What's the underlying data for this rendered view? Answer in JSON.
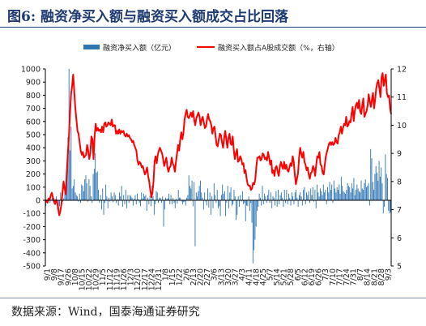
{
  "figure": {
    "title": "图6:  融资净买入额与融资买入额成交占比回落",
    "source": "数据来源：Wind，国泰海通证券研究"
  },
  "chart_data": {
    "type": "bar+line",
    "colors": {
      "bars": "#2e75b6",
      "line": "#ff0000",
      "axis": "#000000"
    },
    "legend": {
      "placement": "top",
      "items": [
        "融资净买入额（亿元）",
        "融资买入额占A股成交额（%，右轴）"
      ]
    },
    "y_left": {
      "min": -500,
      "max": 1000,
      "ticks": [
        -500,
        -400,
        -300,
        -200,
        -100,
        0,
        100,
        200,
        300,
        400,
        500,
        600,
        700,
        800,
        900,
        1000
      ]
    },
    "y_right": {
      "min": 5,
      "max": 12,
      "ticks": [
        5,
        6,
        7,
        8,
        9,
        10,
        11,
        12
      ]
    },
    "x_tick_labels": [
      "9/1",
      "9/8",
      "9/17",
      "9/26",
      "10/8",
      "10/15",
      "10/22",
      "10/29",
      "11/5",
      "11/12",
      "11/19",
      "11/26",
      "12/3",
      "12/10",
      "12/17",
      "12/24",
      "12/31",
      "1/8",
      "1/15",
      "1/22",
      "2/6",
      "2/13",
      "2/20",
      "2/27",
      "3/6",
      "3/13",
      "3/20",
      "3/27",
      "4/3",
      "4/11",
      "4/18",
      "4/25",
      "5/7",
      "5/14",
      "5/21",
      "5/28",
      "6/5",
      "6/12",
      "6/19",
      "6/26",
      "7/3",
      "7/10",
      "7/17",
      "7/24",
      "7/31",
      "8/7",
      "8/14",
      "8/21",
      "8/28",
      "9/3"
    ],
    "series": [
      {
        "name": "融资净买入额（亿元）",
        "kind": "bar",
        "axis": "left",
        "values": [
          -45,
          5,
          -15,
          10,
          -20,
          5,
          20,
          -10,
          5,
          -30,
          30,
          -70,
          -95,
          -45,
          60,
          20,
          -10,
          15,
          90,
          120,
          280,
          480,
          1000,
          380,
          560,
          90,
          110,
          160,
          60,
          40,
          30,
          -10,
          50,
          -20,
          120,
          110,
          70,
          160,
          190,
          130,
          -10,
          160,
          110,
          30,
          -20,
          200,
          240,
          360,
          210,
          220,
          80,
          -20,
          40,
          -70,
          90,
          -110,
          -20,
          120,
          30,
          -60,
          20,
          -10,
          60,
          30,
          -15,
          60,
          40,
          -20,
          10,
          -40,
          60,
          30,
          110,
          -50,
          40,
          -30,
          80,
          -60,
          40,
          -20,
          40,
          30,
          20,
          -40,
          10,
          40,
          -30,
          50,
          10,
          -20,
          -45,
          60,
          15,
          50,
          30,
          40,
          -80,
          20,
          -30,
          35,
          -45,
          110,
          30,
          -110,
          -30,
          70,
          60,
          -20,
          20,
          20,
          -20,
          30,
          -200,
          -70,
          20,
          10,
          15,
          50,
          -30,
          40,
          -30,
          20,
          -20,
          -60,
          10,
          -25,
          80,
          20,
          20,
          -10,
          -30,
          -15,
          -10,
          -40,
          20,
          40,
          190,
          110,
          90,
          150,
          -45,
          140,
          -350,
          60,
          30,
          70,
          110,
          150,
          60,
          20,
          -70,
          60,
          -10,
          -40,
          90,
          -55,
          60,
          -110,
          30,
          -60,
          130,
          40,
          -20,
          80,
          -60,
          -45,
          -120,
          40,
          120,
          50,
          70,
          -120,
          -20,
          110,
          -60,
          60,
          100,
          -40,
          -30,
          80,
          30,
          -150,
          -110,
          30,
          -50,
          40,
          -10,
          70,
          -30,
          -20,
          -160,
          -40,
          -45,
          30,
          -80,
          -20,
          -170,
          -480,
          -380,
          -300,
          -200,
          -80,
          -50,
          50,
          20,
          -40,
          110,
          -30,
          50,
          30,
          -20,
          40,
          80,
          -20,
          60,
          -60,
          30,
          20,
          -40,
          70,
          -50,
          80,
          -30,
          40,
          60,
          20,
          -50,
          80,
          -20,
          80,
          -30,
          50,
          20,
          -40,
          60,
          30,
          -30,
          60,
          80,
          20,
          -50,
          40,
          60,
          30,
          -40,
          80,
          100,
          -30,
          60,
          40,
          70,
          -20,
          90,
          40,
          100,
          -10,
          80,
          -60,
          120,
          60,
          30,
          90,
          70,
          40,
          120,
          60,
          80,
          -30,
          100,
          60,
          140,
          80,
          120,
          -20,
          150,
          90,
          60,
          100,
          80,
          120,
          50,
          180,
          110,
          70,
          60,
          50,
          80,
          130,
          110,
          100,
          60,
          130,
          90,
          170,
          40,
          80,
          120,
          90,
          70,
          60,
          150,
          90,
          80,
          130,
          160,
          100,
          110,
          130,
          -40,
          390,
          320,
          140,
          80,
          200,
          260,
          210,
          150,
          300,
          180,
          250,
          130,
          -100,
          -50,
          350,
          200,
          170,
          -80,
          -100,
          -90
        ]
      },
      {
        "name": "融资买入额占A股成交额（%，右轴）",
        "kind": "line",
        "axis": "right",
        "values": [
          7.35,
          7.3,
          7.25,
          7.4,
          7.35,
          7.5,
          7.6,
          7.45,
          7.3,
          7.2,
          7.35,
          7.25,
          7.05,
          6.8,
          6.95,
          7.2,
          7.6,
          8.0,
          7.75,
          7.55,
          8.3,
          9.0,
          9.6,
          10.4,
          11.1,
          11.4,
          11.8,
          11.2,
          10.6,
          10.2,
          9.8,
          9.7,
          9.4,
          9.1,
          8.95,
          9.05,
          8.85,
          8.9,
          8.95,
          9.3,
          9.1,
          8.8,
          9.0,
          9.6,
          9.5,
          8.8,
          9.6,
          10.05,
          9.8,
          9.9,
          9.8,
          9.85,
          9.75,
          9.95,
          9.75,
          10.05,
          10.1,
          9.95,
          10.0,
          10.1,
          10.05,
          10.0,
          10.2,
          9.95,
          10.0,
          10.0,
          9.7,
          9.8,
          9.7,
          9.85,
          9.7,
          9.8,
          9.75,
          9.8,
          9.65,
          9.6,
          9.7,
          9.6,
          9.65,
          9.55,
          9.5,
          9.4,
          9.45,
          9.3,
          9.2,
          9.1,
          8.75,
          8.6,
          8.7,
          8.65,
          8.5,
          8.55,
          8.4,
          8.25,
          8.35,
          8.5,
          8.2,
          8.0,
          7.7,
          7.45,
          7.6,
          8.0,
          8.7,
          8.9,
          8.65,
          8.95,
          9.1,
          9.2,
          9.1,
          9.0,
          8.8,
          8.55,
          8.7,
          8.85,
          8.5,
          8.35,
          8.5,
          8.55,
          8.85,
          8.65,
          8.55,
          8.35,
          8.7,
          9.0,
          9.3,
          9.1,
          9.5,
          9.75,
          9.5,
          9.75,
          10.2,
          10.4,
          10.55,
          10.3,
          10.25,
          10.35,
          10.45,
          10.3,
          10.5,
          10.2,
          10.0,
          10.25,
          10.35,
          10.45,
          10.3,
          10.0,
          10.2,
          10.3,
          10.1,
          9.9,
          9.95,
          10.2,
          10.4,
          10.2,
          10.15,
          10.0,
          9.7,
          9.9,
          9.95,
          9.6,
          9.3,
          9.25,
          9.5,
          9.7,
          9.65,
          9.4,
          9.2,
          9.55,
          9.8,
          9.5,
          9.2,
          9.55,
          9.7,
          9.35,
          9.3,
          9.6,
          9.1,
          8.8,
          9.0,
          9.15,
          8.7,
          8.75,
          8.9,
          8.8,
          8.6,
          8.65,
          8.3,
          8.4,
          8.1,
          7.9,
          7.85,
          7.85,
          7.7,
          7.75,
          7.95,
          7.9,
          8.05,
          8.5,
          8.85,
          8.85,
          8.9,
          8.75,
          8.8,
          9.0,
          8.95,
          8.8,
          8.85,
          8.75,
          9.05,
          8.85,
          8.6,
          8.75,
          8.3,
          8.4,
          8.2,
          8.5,
          8.55,
          8.35,
          8.2,
          8.5,
          8.7,
          8.55,
          8.45,
          8.7,
          8.45,
          8.6,
          8.4,
          8.35,
          8.5,
          8.65,
          8.55,
          8.9,
          8.7,
          8.25,
          7.9,
          8.1,
          8.3,
          8.85,
          9.2,
          9.0,
          8.85,
          9.05,
          8.7,
          8.6,
          8.4,
          8.5,
          8.25,
          8.1,
          8.3,
          8.35,
          8.55,
          8.45,
          8.2,
          8.6,
          8.9,
          8.85,
          9.05,
          8.6,
          8.55,
          8.3,
          8.25,
          8.6,
          8.9,
          9.05,
          9.2,
          9.35,
          9.4,
          9.3,
          9.4,
          9.3,
          9.35,
          9.55,
          9.4,
          9.35,
          9.65,
          9.75,
          9.95,
          9.7,
          9.9,
          10.05,
          10.0,
          10.3,
          9.95,
          10.0,
          10.15,
          10.1,
          10.4,
          10.65,
          10.15,
          10.5,
          10.7,
          10.8,
          10.6,
          10.9,
          10.5,
          10.4,
          10.7,
          10.95,
          10.3,
          10.4,
          10.5,
          10.7,
          11.1,
          10.85,
          10.65,
          10.9,
          11.15,
          10.6,
          10.9,
          11.3,
          11.5,
          11.6,
          11.3,
          11.0,
          11.7,
          11.85,
          11.4,
          11.6,
          11.8,
          11.15,
          11.0,
          11.05,
          10.6,
          10.4
        ]
      }
    ]
  }
}
